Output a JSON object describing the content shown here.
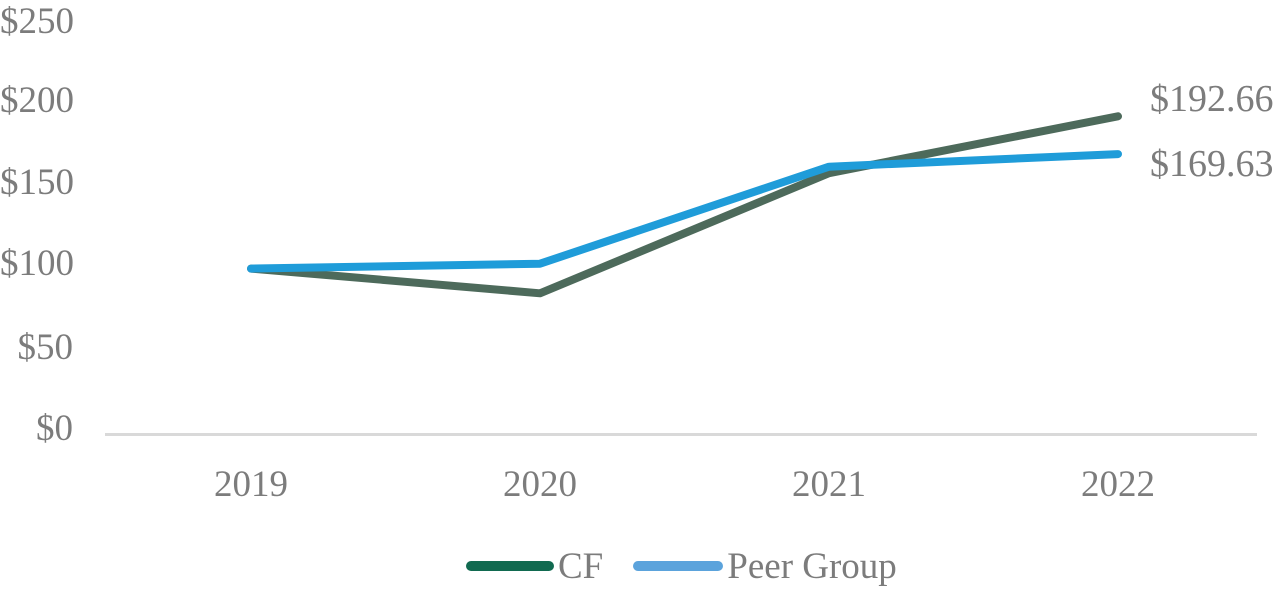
{
  "chart_data": {
    "type": "line",
    "categories": [
      "2019",
      "2020",
      "2021",
      "2022"
    ],
    "series": [
      {
        "name": "CF",
        "values": [
          100,
          85,
          158,
          192.66
        ],
        "line_color": "#4d6a5b",
        "legend_color": "#116a50",
        "end_label": "$192.66"
      },
      {
        "name": "Peer Group",
        "values": [
          100,
          103,
          162,
          169.63
        ],
        "line_color": "#1f9cd9",
        "legend_color": "#5ba3dc",
        "end_label": "$169.63"
      }
    ],
    "ylim": [
      0,
      250
    ],
    "yticks": [
      250,
      200,
      150,
      100,
      50,
      0
    ],
    "ytick_labels": [
      "$250",
      "$200",
      "$150",
      "$100",
      "$50",
      "$0"
    ],
    "xlabel": "",
    "ylabel": "",
    "grid": "off",
    "legend_position": "bottom",
    "axis_color": "#d9d9d9",
    "text_color": "#7c7c7c"
  }
}
